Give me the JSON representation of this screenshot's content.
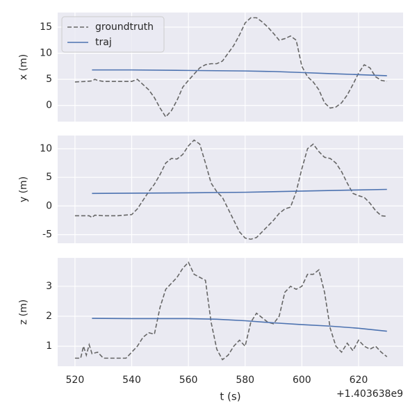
{
  "chart_data": [
    {
      "type": "line",
      "ylabel": "x (m)",
      "xlim": [
        513.9,
        635.7
      ],
      "xticks": [
        520,
        540,
        560,
        580,
        600,
        620
      ],
      "show_xtick_labels": false,
      "ylim": [
        -3.1,
        17.8
      ],
      "yticks": [
        0,
        5,
        10,
        15
      ],
      "grid": true,
      "legend": "upper left",
      "series": [
        {
          "name": "groundtruth",
          "color": "#666666",
          "dashed": true,
          "x": [
            520,
            524,
            526,
            527,
            528,
            530,
            535,
            540,
            542,
            544,
            546,
            548,
            550,
            552,
            554,
            556,
            558,
            560,
            562,
            564,
            566,
            568,
            570,
            572,
            574,
            576,
            578,
            580,
            582,
            584,
            586,
            588,
            590,
            592,
            594,
            596,
            598,
            600,
            602,
            604,
            606,
            608,
            610,
            612,
            614,
            616,
            618,
            620,
            622,
            624,
            626,
            628,
            630
          ],
          "values": [
            4.5,
            4.6,
            4.7,
            5.0,
            4.8,
            4.6,
            4.6,
            4.6,
            5.0,
            4.0,
            3.0,
            1.5,
            -0.5,
            -2.2,
            -1.0,
            1.0,
            3.5,
            4.8,
            6.0,
            7.2,
            7.8,
            8.0,
            8.0,
            8.5,
            10,
            11.5,
            13.5,
            15.8,
            16.8,
            16.8,
            16.0,
            15.0,
            13.8,
            12.5,
            12.8,
            13.3,
            12.5,
            7.5,
            5.5,
            4.5,
            3.0,
            0.5,
            -0.5,
            -0.3,
            0.5,
            2,
            4,
            6.2,
            7.8,
            7.2,
            5.5,
            4.8,
            4.6
          ]
        },
        {
          "name": "traj",
          "color": "#4c72b0",
          "dashed": false,
          "x": [
            526,
            540,
            560,
            580,
            590,
            600,
            610,
            620,
            630
          ],
          "values": [
            6.8,
            6.8,
            6.7,
            6.6,
            6.5,
            6.3,
            6.1,
            5.9,
            5.7
          ]
        }
      ]
    },
    {
      "type": "line",
      "ylabel": "y (m)",
      "xlim": [
        513.9,
        635.7
      ],
      "xticks": [
        520,
        540,
        560,
        580,
        600,
        620
      ],
      "show_xtick_labels": false,
      "ylim": [
        -6.5,
        12.3
      ],
      "yticks": [
        -5,
        0,
        5,
        10
      ],
      "grid": true,
      "series": [
        {
          "name": "groundtruth",
          "color": "#666666",
          "dashed": true,
          "x": [
            520,
            525,
            526,
            527,
            530,
            535,
            540,
            542,
            544,
            546,
            548,
            550,
            552,
            554,
            556,
            558,
            560,
            562,
            564,
            566,
            568,
            570,
            572,
            574,
            576,
            578,
            580,
            582,
            584,
            586,
            588,
            590,
            592,
            594,
            596,
            598,
            600,
            602,
            604,
            606,
            608,
            610,
            612,
            614,
            616,
            618,
            620,
            622,
            624,
            626,
            628,
            630
          ],
          "values": [
            -1.7,
            -1.7,
            -2.0,
            -1.6,
            -1.7,
            -1.7,
            -1.5,
            -0.5,
            1,
            2.5,
            3.8,
            5.5,
            7.5,
            8.3,
            8.2,
            9,
            10.5,
            11.5,
            10.8,
            7.5,
            4,
            2.5,
            1.5,
            -0.5,
            -2.5,
            -4.5,
            -5.6,
            -5.8,
            -5.5,
            -4.5,
            -3.5,
            -2.5,
            -1.3,
            -0.5,
            -0.2,
            2.5,
            6.5,
            10,
            10.8,
            9.5,
            8.5,
            8.3,
            7.5,
            6,
            4,
            2.2,
            1.8,
            1.5,
            0.5,
            -0.8,
            -1.7,
            -1.8
          ]
        },
        {
          "name": "traj",
          "color": "#4c72b0",
          "dashed": false,
          "x": [
            526,
            560,
            580,
            600,
            620,
            630
          ],
          "values": [
            2.2,
            2.3,
            2.4,
            2.6,
            2.8,
            2.9
          ]
        }
      ]
    },
    {
      "type": "line",
      "ylabel": "z (m)",
      "xlabel": "t (s)",
      "x_offset_label": "+1.403638e9",
      "xlim": [
        513.9,
        635.7
      ],
      "xticks": [
        520,
        540,
        560,
        580,
        600,
        620
      ],
      "show_xtick_labels": true,
      "ylim": [
        0.33,
        3.95
      ],
      "yticks": [
        1,
        2,
        3
      ],
      "grid": true,
      "series": [
        {
          "name": "groundtruth",
          "color": "#666666",
          "dashed": true,
          "x": [
            520,
            522,
            523,
            524,
            525,
            526,
            528,
            530,
            535,
            538,
            540,
            542,
            544,
            546,
            548,
            550,
            552,
            554,
            556,
            558,
            560,
            562,
            564,
            566,
            568,
            570,
            572,
            574,
            576,
            578,
            580,
            582,
            584,
            586,
            588,
            590,
            592,
            594,
            596,
            598,
            600,
            602,
            604,
            606,
            608,
            610,
            612,
            614,
            616,
            618,
            620,
            622,
            624,
            626,
            628,
            630
          ],
          "values": [
            0.6,
            0.6,
            1.0,
            0.7,
            1.05,
            0.75,
            0.8,
            0.6,
            0.6,
            0.6,
            0.8,
            1.0,
            1.3,
            1.45,
            1.4,
            2.3,
            2.9,
            3.1,
            3.3,
            3.6,
            3.8,
            3.4,
            3.3,
            3.2,
            1.8,
            0.9,
            0.55,
            0.7,
            1.0,
            1.2,
            1.0,
            1.8,
            2.1,
            1.95,
            1.8,
            1.75,
            2.0,
            2.8,
            3.0,
            2.9,
            3.0,
            3.4,
            3.4,
            3.55,
            2.8,
            1.6,
            1.0,
            0.8,
            1.1,
            0.85,
            1.2,
            1.0,
            0.9,
            1.0,
            0.8,
            0.65
          ]
        },
        {
          "name": "traj",
          "color": "#4c72b0",
          "dashed": false,
          "x": [
            526,
            540,
            560,
            570,
            580,
            590,
            600,
            610,
            620,
            630
          ],
          "values": [
            1.93,
            1.92,
            1.92,
            1.9,
            1.85,
            1.78,
            1.72,
            1.67,
            1.6,
            1.5
          ]
        }
      ]
    }
  ]
}
